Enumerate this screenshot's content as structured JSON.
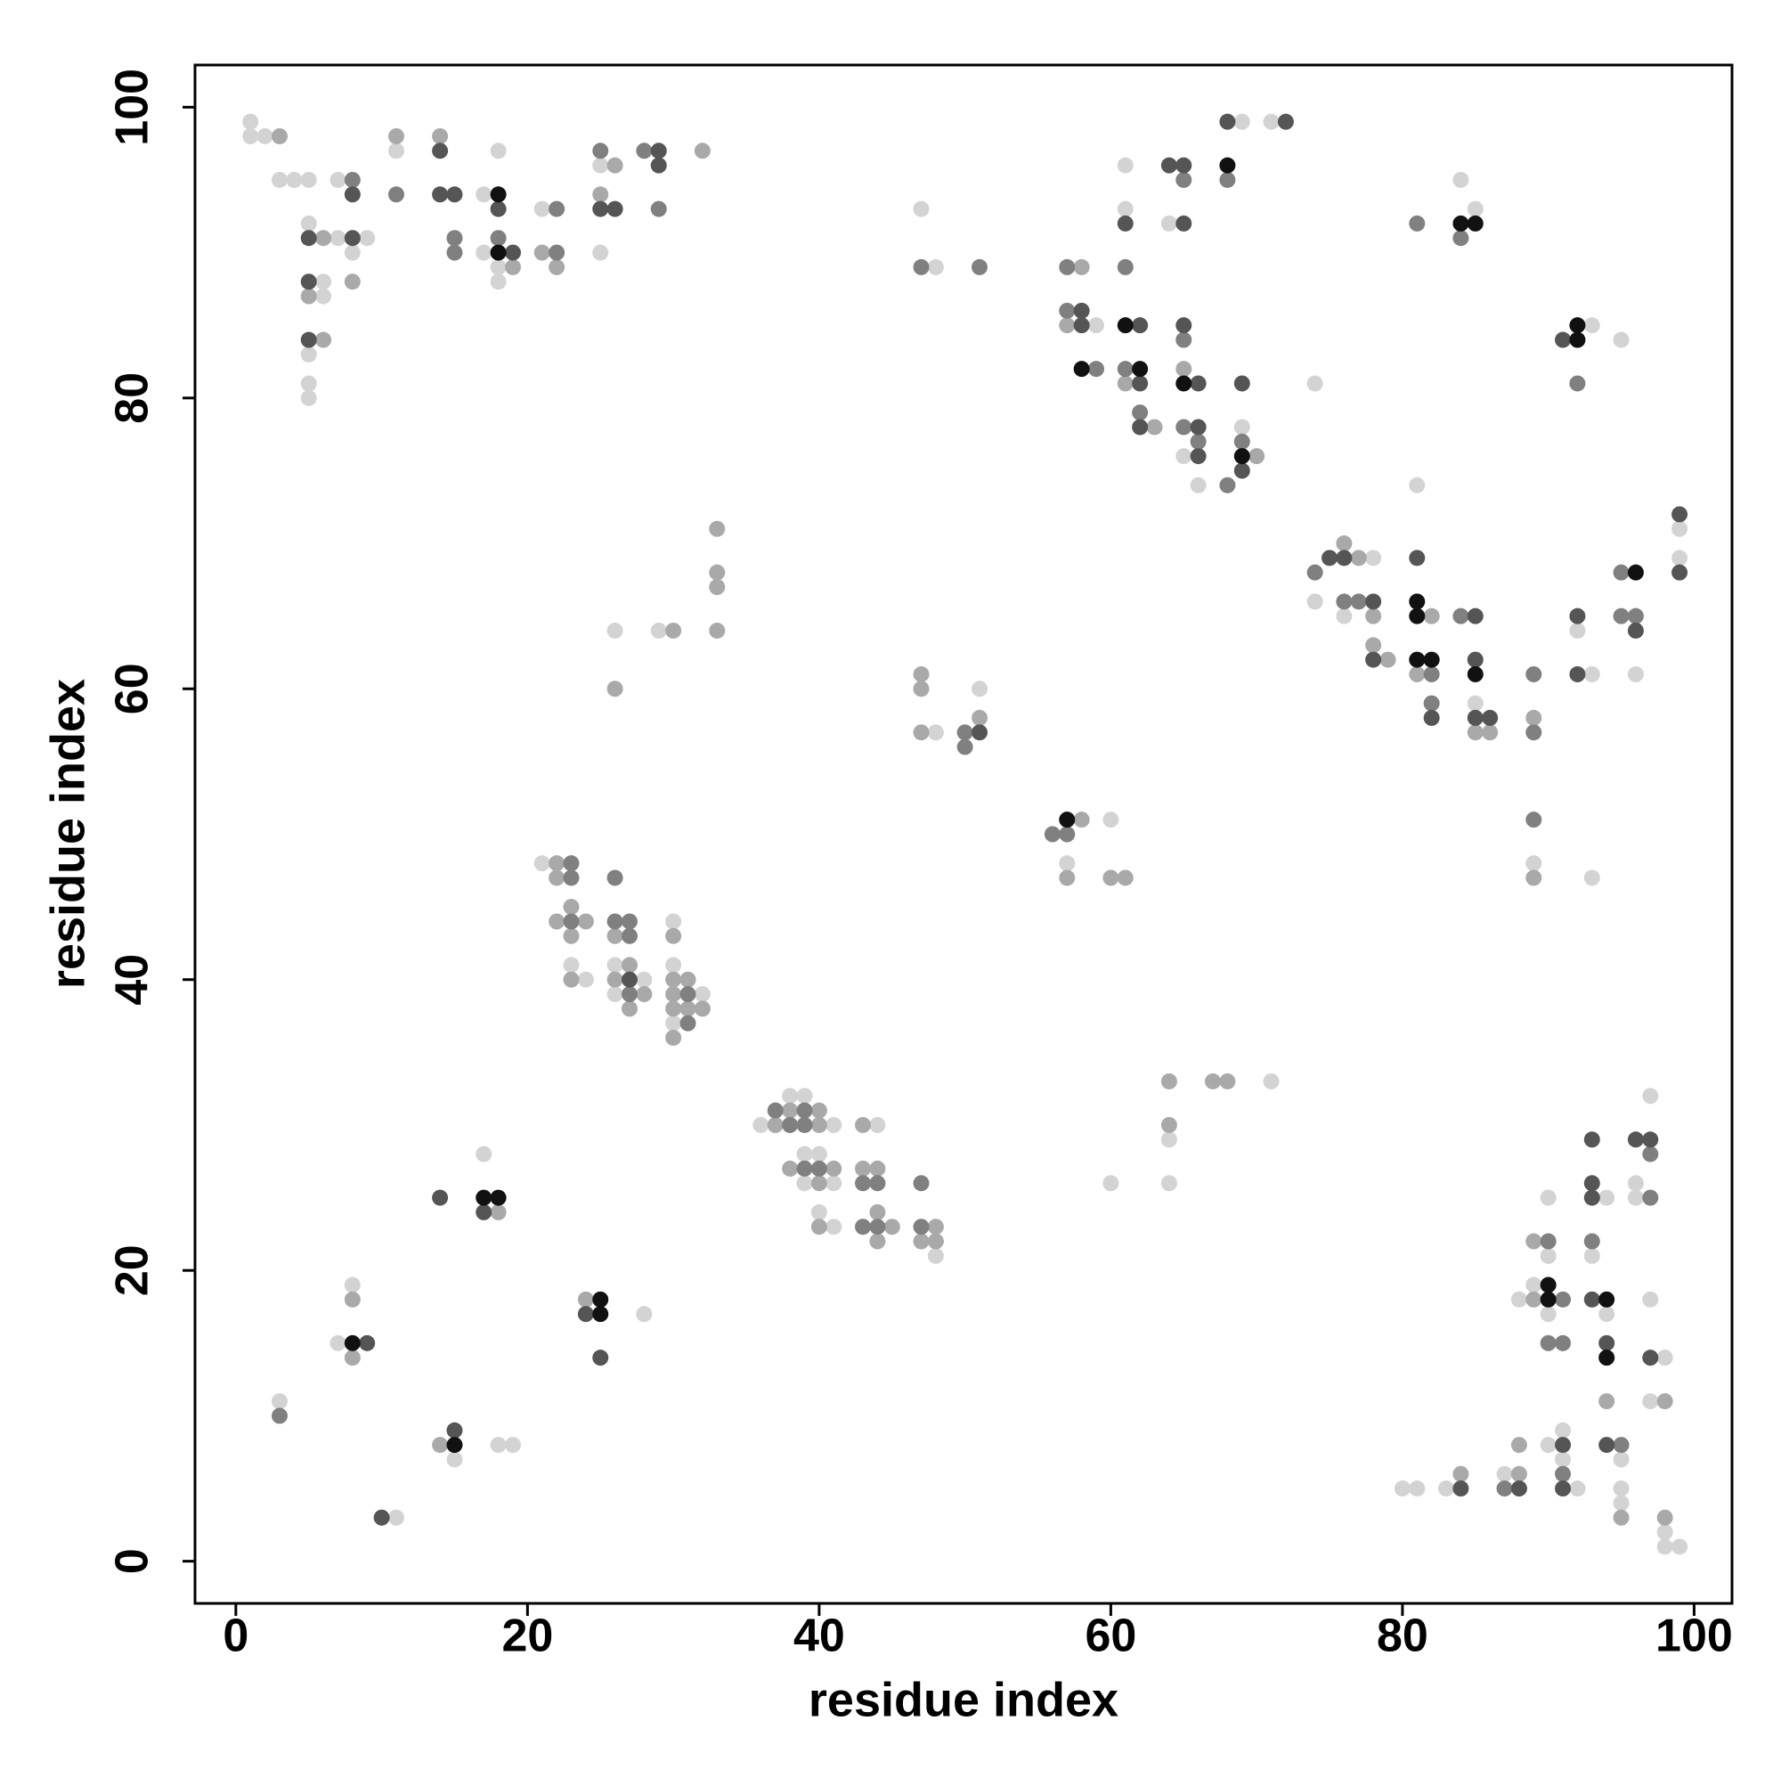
{
  "chart_data": {
    "type": "scatter",
    "x_label": "residue index",
    "y_label": "residue index",
    "xlim": [
      -2.8,
      102.6
    ],
    "ylim": [
      -2.9,
      102.9
    ],
    "xticks": [
      0,
      20,
      40,
      60,
      80,
      100
    ],
    "yticks": [
      0,
      20,
      40,
      60,
      80,
      100
    ],
    "grid": false,
    "series": [
      {
        "color": "#d3d3d3",
        "x": [
          1,
          1,
          2,
          3,
          4,
          5,
          5,
          7,
          9,
          6,
          6,
          5,
          5,
          5,
          7,
          8,
          11,
          17,
          18,
          17,
          18,
          18,
          21,
          25,
          25,
          47,
          48,
          59,
          61,
          61,
          64,
          65,
          66,
          69,
          71,
          69,
          74,
          84,
          85,
          93,
          95,
          81,
          78,
          74,
          76,
          85,
          92,
          93,
          96,
          99,
          99,
          89,
          93,
          26,
          29,
          48,
          51,
          60,
          57,
          21,
          24,
          26,
          28,
          26,
          30,
          30,
          32,
          30,
          36,
          38,
          39,
          41,
          39,
          40,
          39,
          41,
          40,
          41,
          44,
          48,
          64,
          64,
          60,
          71,
          3,
          17,
          8,
          7,
          28,
          15,
          18,
          19,
          11,
          80,
          81,
          83,
          87,
          90,
          91,
          91,
          92,
          95,
          95,
          95,
          98,
          98,
          99,
          90,
          90,
          89,
          88,
          90,
          94,
          93,
          94,
          97,
          96,
          96,
          97,
          98,
          97,
          23
        ],
        "y": [
          99,
          98,
          98,
          95,
          95,
          95,
          92,
          91,
          91,
          88,
          87,
          83,
          81,
          80,
          95,
          90,
          97,
          94,
          97,
          90,
          89,
          88,
          93,
          96,
          90,
          93,
          89,
          85,
          96,
          93,
          92,
          76,
          74,
          99,
          99,
          78,
          81,
          95,
          93,
          85,
          84,
          74,
          69,
          66,
          65,
          59,
          64,
          61,
          61,
          71,
          69,
          48,
          47,
          64,
          64,
          57,
          60,
          51,
          48,
          48,
          40,
          41,
          40,
          39,
          44,
          41,
          39,
          37,
          30,
          32,
          32,
          30,
          28,
          28,
          26,
          26,
          24,
          23,
          30,
          21,
          29,
          26,
          26,
          33,
          11,
          28,
          19,
          15,
          17,
          7,
          8,
          8,
          3,
          5,
          5,
          5,
          6,
          8,
          9,
          7,
          5,
          7,
          5,
          4,
          2,
          1,
          1,
          21,
          25,
          19,
          18,
          17,
          25,
          21,
          17,
          32,
          26,
          25,
          18,
          14,
          11,
          41
        ]
      },
      {
        "color": "#a9a9a9",
        "x": [
          3,
          6,
          5,
          6,
          8,
          11,
          14,
          19,
          21,
          22,
          25,
          26,
          32,
          58,
          57,
          61,
          63,
          65,
          70,
          76,
          77,
          78,
          78,
          79,
          82,
          81,
          85,
          86,
          89,
          89,
          33,
          33,
          33,
          33,
          26,
          30,
          47,
          47,
          47,
          51,
          58,
          57,
          60,
          61,
          22,
          22,
          23,
          22,
          24,
          23,
          23,
          26,
          27,
          26,
          28,
          27,
          30,
          30,
          31,
          30,
          30,
          31,
          32,
          30,
          37,
          38,
          40,
          40,
          38,
          41,
          40,
          40,
          43,
          43,
          44,
          44,
          45,
          44,
          48,
          47,
          48,
          64,
          64,
          67,
          68,
          18,
          8,
          8,
          24,
          14,
          84,
          88,
          88,
          95,
          98,
          89,
          89,
          94,
          98
        ],
        "y": [
          98,
          91,
          87,
          84,
          88,
          98,
          98,
          89,
          90,
          89,
          94,
          96,
          97,
          89,
          85,
          81,
          78,
          82,
          76,
          70,
          69,
          65,
          63,
          62,
          65,
          61,
          57,
          57,
          58,
          47,
          71,
          68,
          67,
          64,
          60,
          64,
          61,
          60,
          57,
          58,
          51,
          47,
          47,
          47,
          48,
          47,
          45,
          44,
          44,
          43,
          40,
          43,
          41,
          40,
          39,
          38,
          43,
          40,
          40,
          39,
          38,
          38,
          38,
          36,
          30,
          31,
          31,
          30,
          27,
          27,
          26,
          23,
          30,
          27,
          27,
          24,
          23,
          22,
          23,
          22,
          22,
          33,
          30,
          33,
          33,
          24,
          18,
          14,
          18,
          8,
          6,
          6,
          8,
          3,
          3,
          22,
          18,
          11,
          11
        ]
      },
      {
        "color": "#808080",
        "x": [
          8,
          11,
          15,
          15,
          18,
          22,
          22,
          25,
          28,
          29,
          47,
          51,
          57,
          57,
          59,
          61,
          61,
          62,
          65,
          65,
          65,
          66,
          68,
          69,
          68,
          81,
          84,
          92,
          74,
          76,
          77,
          82,
          82,
          84,
          89,
          89,
          95,
          95,
          96,
          89,
          50,
          50,
          56,
          57,
          23,
          23,
          23,
          26,
          26,
          27,
          27,
          27,
          31,
          31,
          37,
          38,
          39,
          39,
          39,
          40,
          43,
          44,
          43,
          44,
          47,
          47,
          3,
          87,
          91,
          95,
          90,
          91,
          90,
          91,
          93,
          97,
          97
        ],
        "y": [
          95,
          94,
          91,
          90,
          91,
          93,
          90,
          97,
          97,
          93,
          89,
          89,
          89,
          86,
          82,
          89,
          82,
          79,
          95,
          84,
          78,
          77,
          95,
          77,
          74,
          92,
          91,
          81,
          68,
          66,
          66,
          61,
          59,
          65,
          61,
          57,
          68,
          65,
          65,
          51,
          57,
          56,
          50,
          50,
          48,
          47,
          44,
          47,
          44,
          44,
          43,
          39,
          39,
          37,
          31,
          30,
          31,
          30,
          27,
          27,
          26,
          26,
          23,
          23,
          26,
          23,
          10,
          5,
          6,
          8,
          22,
          18,
          15,
          15,
          22,
          28,
          25
        ]
      },
      {
        "color": "#555555",
        "x": [
          5,
          8,
          5,
          5,
          8,
          14,
          14,
          15,
          18,
          19,
          25,
          26,
          29,
          29,
          58,
          58,
          61,
          62,
          62,
          62,
          64,
          65,
          65,
          65,
          66,
          66,
          66,
          68,
          72,
          69,
          69,
          91,
          75,
          76,
          78,
          78,
          81,
          82,
          85,
          85,
          85,
          86,
          92,
          92,
          96,
          99,
          99,
          51,
          27,
          14,
          17,
          9,
          24,
          25,
          15,
          10,
          84,
          88,
          91,
          91,
          94,
          93,
          93,
          93,
          93,
          94,
          96,
          97,
          97
        ],
        "y": [
          91,
          91,
          88,
          84,
          94,
          97,
          94,
          94,
          93,
          90,
          93,
          93,
          97,
          96,
          86,
          85,
          92,
          85,
          81,
          78,
          96,
          96,
          92,
          85,
          81,
          78,
          76,
          99,
          99,
          81,
          75,
          84,
          69,
          69,
          66,
          62,
          69,
          58,
          65,
          62,
          58,
          58,
          65,
          61,
          64,
          72,
          68,
          57,
          40,
          25,
          24,
          15,
          17,
          14,
          9,
          3,
          5,
          5,
          8,
          5,
          8,
          29,
          26,
          25,
          18,
          15,
          29,
          29,
          14
        ]
      },
      {
        "color": "#111111",
        "x": [
          18,
          18,
          58,
          61,
          62,
          65,
          69,
          68,
          84,
          85,
          92,
          92,
          81,
          81,
          81,
          82,
          85,
          96,
          57,
          17,
          18,
          8,
          25,
          25,
          15,
          90,
          90,
          94,
          94
        ],
        "y": [
          94,
          90,
          82,
          85,
          82,
          81,
          76,
          96,
          92,
          92,
          85,
          84,
          66,
          65,
          62,
          62,
          61,
          68,
          51,
          25,
          25,
          15,
          18,
          17,
          8,
          19,
          18,
          18,
          14
        ]
      }
    ]
  }
}
